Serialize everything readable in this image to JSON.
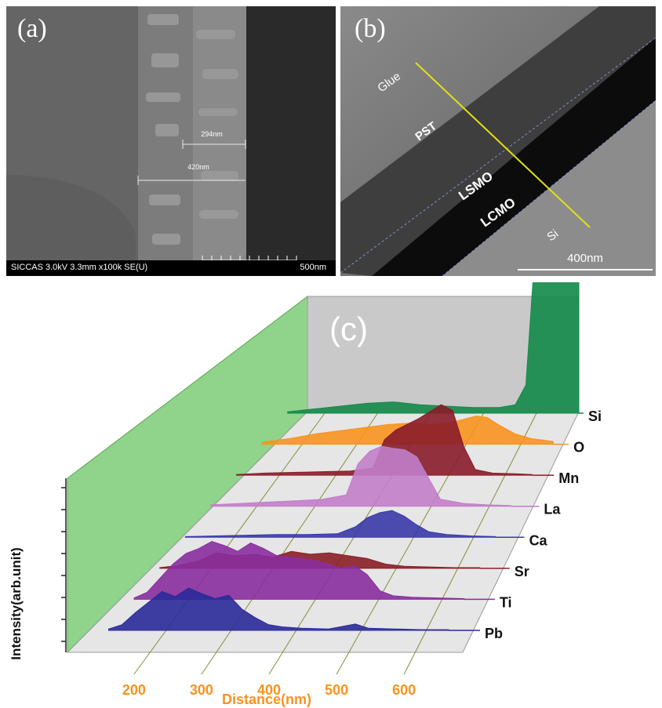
{
  "panel_a": {
    "label": "(a)",
    "scalebar_label": "500nm",
    "meas_1": "294nm",
    "meas_2": "420nm",
    "info": "SICCAS 3.0kV 3.3mm x100k SE(U)"
  },
  "panel_b": {
    "label": "(b)",
    "layers": [
      "Glue",
      "PST",
      "LSMO",
      "LCMO",
      "Si"
    ],
    "scalebar_label": "400nm"
  },
  "panel_c": {
    "label": "(c)"
  },
  "chart_data": {
    "type": "area",
    "title": "",
    "xlabel": "Distance(nm)",
    "ylabel": "Intensity(arb.unit)",
    "xticks": [
      200,
      300,
      400,
      500,
      600
    ],
    "xlim": [
      120,
      680
    ],
    "series": [
      {
        "name": "Pb",
        "color": "#2a2a99",
        "points": [
          [
            130,
            2
          ],
          [
            150,
            8
          ],
          [
            170,
            25
          ],
          [
            190,
            40
          ],
          [
            210,
            55
          ],
          [
            230,
            48
          ],
          [
            250,
            60
          ],
          [
            270,
            52
          ],
          [
            290,
            45
          ],
          [
            310,
            50
          ],
          [
            330,
            30
          ],
          [
            350,
            18
          ],
          [
            370,
            8
          ],
          [
            390,
            5
          ],
          [
            420,
            3
          ],
          [
            460,
            2
          ],
          [
            500,
            9
          ],
          [
            520,
            3
          ],
          [
            560,
            2
          ],
          [
            600,
            1
          ],
          [
            640,
            1
          ]
        ]
      },
      {
        "name": "Ti",
        "color": "#8a2e9e",
        "points": [
          [
            130,
            2
          ],
          [
            150,
            10
          ],
          [
            170,
            30
          ],
          [
            190,
            50
          ],
          [
            210,
            65
          ],
          [
            230,
            72
          ],
          [
            250,
            82
          ],
          [
            270,
            76
          ],
          [
            290,
            68
          ],
          [
            310,
            80
          ],
          [
            330,
            72
          ],
          [
            350,
            62
          ],
          [
            370,
            60
          ],
          [
            390,
            58
          ],
          [
            410,
            55
          ],
          [
            430,
            50
          ],
          [
            450,
            44
          ],
          [
            470,
            48
          ],
          [
            490,
            35
          ],
          [
            510,
            12
          ],
          [
            530,
            5
          ],
          [
            560,
            3
          ],
          [
            600,
            2
          ],
          [
            640,
            1
          ]
        ]
      },
      {
        "name": "Sr",
        "color": "#8a1e26",
        "points": [
          [
            130,
            1
          ],
          [
            160,
            4
          ],
          [
            190,
            10
          ],
          [
            220,
            22
          ],
          [
            250,
            18
          ],
          [
            280,
            20
          ],
          [
            310,
            16
          ],
          [
            340,
            24
          ],
          [
            370,
            20
          ],
          [
            400,
            22
          ],
          [
            430,
            18
          ],
          [
            460,
            14
          ],
          [
            490,
            6
          ],
          [
            520,
            3
          ],
          [
            560,
            2
          ],
          [
            600,
            1
          ],
          [
            640,
            1
          ]
        ]
      },
      {
        "name": "Ca",
        "color": "#3838a8",
        "points": [
          [
            130,
            1
          ],
          [
            180,
            2
          ],
          [
            230,
            3
          ],
          [
            280,
            4
          ],
          [
            330,
            4
          ],
          [
            380,
            5
          ],
          [
            410,
            15
          ],
          [
            430,
            28
          ],
          [
            450,
            35
          ],
          [
            470,
            38
          ],
          [
            490,
            30
          ],
          [
            510,
            18
          ],
          [
            530,
            8
          ],
          [
            560,
            4
          ],
          [
            600,
            2
          ],
          [
            640,
            1
          ]
        ]
      },
      {
        "name": "La",
        "color": "#c17ec9",
        "points": [
          [
            130,
            2
          ],
          [
            180,
            4
          ],
          [
            230,
            6
          ],
          [
            280,
            8
          ],
          [
            320,
            10
          ],
          [
            360,
            16
          ],
          [
            380,
            60
          ],
          [
            400,
            78
          ],
          [
            420,
            85
          ],
          [
            440,
            82
          ],
          [
            460,
            80
          ],
          [
            480,
            70
          ],
          [
            500,
            40
          ],
          [
            520,
            10
          ],
          [
            560,
            4
          ],
          [
            600,
            2
          ],
          [
            640,
            1
          ]
        ]
      },
      {
        "name": "Mn",
        "color": "#8a1c2a",
        "points": [
          [
            130,
            1
          ],
          [
            180,
            3
          ],
          [
            230,
            4
          ],
          [
            280,
            5
          ],
          [
            330,
            6
          ],
          [
            370,
            10
          ],
          [
            390,
            50
          ],
          [
            410,
            64
          ],
          [
            430,
            72
          ],
          [
            450,
            80
          ],
          [
            470,
            90
          ],
          [
            490,
            100
          ],
          [
            510,
            92
          ],
          [
            530,
            40
          ],
          [
            550,
            8
          ],
          [
            580,
            3
          ],
          [
            620,
            2
          ],
          [
            650,
            1
          ]
        ]
      },
      {
        "name": "O",
        "color": "#f7931e",
        "points": [
          [
            130,
            3
          ],
          [
            180,
            8
          ],
          [
            230,
            15
          ],
          [
            280,
            20
          ],
          [
            320,
            24
          ],
          [
            360,
            28
          ],
          [
            400,
            30
          ],
          [
            440,
            28
          ],
          [
            480,
            32
          ],
          [
            520,
            40
          ],
          [
            540,
            38
          ],
          [
            560,
            28
          ],
          [
            590,
            15
          ],
          [
            620,
            8
          ],
          [
            660,
            4
          ]
        ]
      },
      {
        "name": "Si",
        "color": "#138a49",
        "points": [
          [
            130,
            2
          ],
          [
            180,
            6
          ],
          [
            230,
            10
          ],
          [
            280,
            14
          ],
          [
            330,
            16
          ],
          [
            380,
            12
          ],
          [
            430,
            10
          ],
          [
            480,
            8
          ],
          [
            530,
            8
          ],
          [
            560,
            12
          ],
          [
            580,
            40
          ],
          [
            600,
            260
          ],
          [
            620,
            300
          ],
          [
            650,
            300
          ],
          [
            680,
            300
          ]
        ]
      }
    ]
  }
}
